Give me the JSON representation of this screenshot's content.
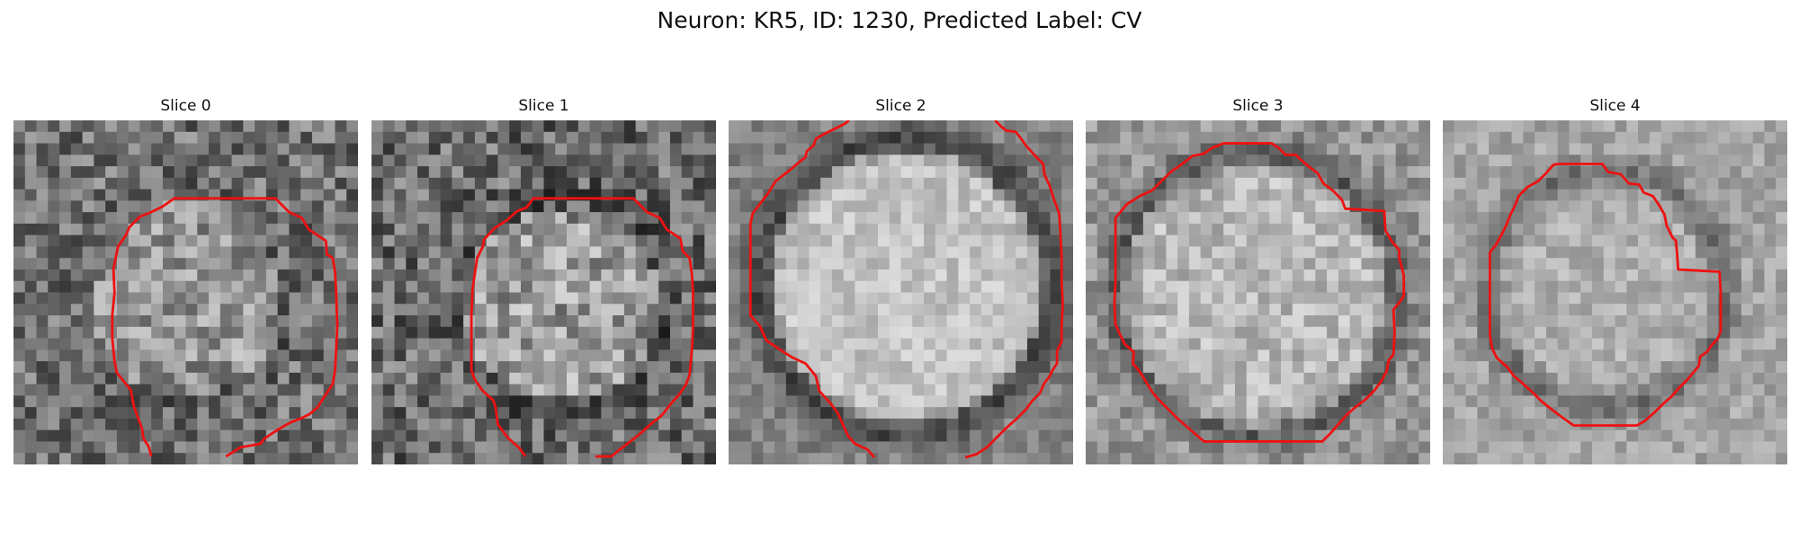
{
  "figure": {
    "title": "Neuron: KR5, ID: 1230, Predicted Label: CV"
  },
  "slices": [
    {
      "label": "Slice 0"
    },
    {
      "label": "Slice 1"
    },
    {
      "label": "Slice 2"
    },
    {
      "label": "Slice 3"
    },
    {
      "label": "Slice 4"
    }
  ],
  "colors": {
    "contour": "#ee1111",
    "colormap": "gray"
  }
}
